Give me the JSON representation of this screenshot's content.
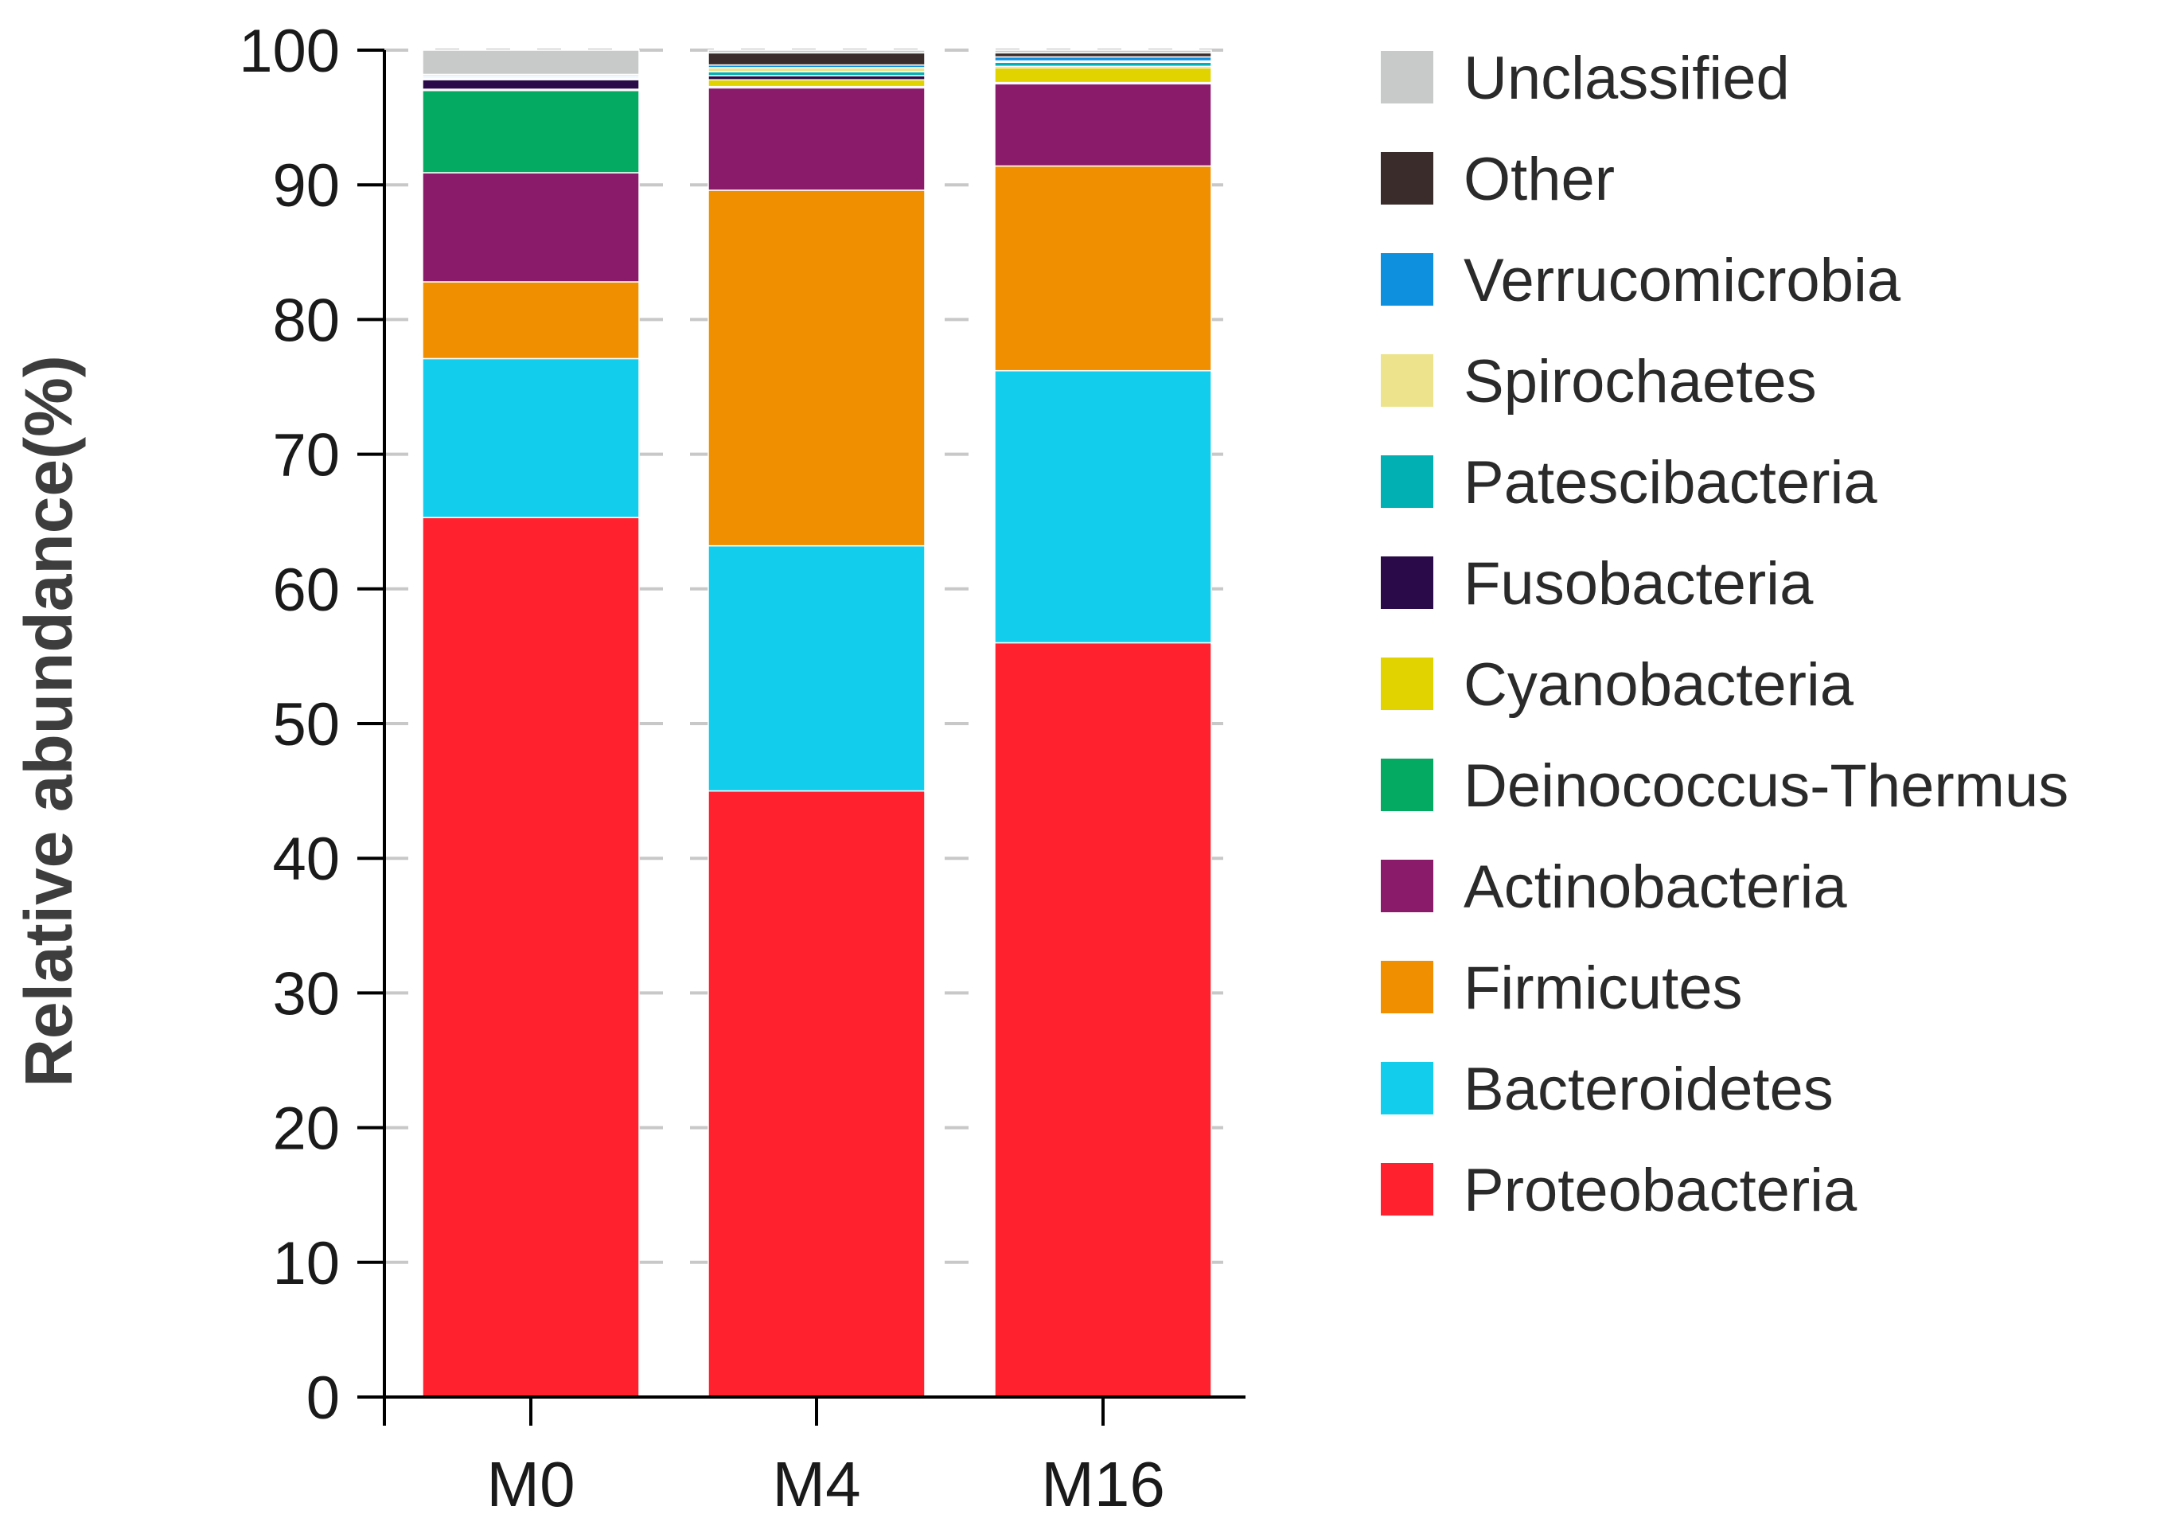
{
  "chart_data": {
    "type": "bar",
    "stacked": true,
    "title": "",
    "xlabel": "",
    "ylabel": "Relative abundance(%)",
    "ylim": [
      0,
      100
    ],
    "yticks": [
      0,
      10,
      20,
      30,
      40,
      50,
      60,
      70,
      80,
      90,
      100
    ],
    "grid": "dashed horizontal",
    "legend_position": "right",
    "categories": [
      "M0",
      "M4",
      "M16"
    ],
    "series": [
      {
        "name": "Proteobacteria",
        "color": "#FF222E",
        "values": [
          65.3,
          45.0,
          56.0
        ]
      },
      {
        "name": "Bacteroidetes",
        "color": "#12CEEC",
        "values": [
          11.8,
          18.2,
          20.2
        ]
      },
      {
        "name": "Firmicutes",
        "color": "#F09000",
        "values": [
          5.7,
          26.4,
          15.2
        ]
      },
      {
        "name": "Actinobacteria",
        "color": "#8A1A6A",
        "values": [
          8.1,
          7.6,
          6.1
        ]
      },
      {
        "name": "Deinococcus-Thermus",
        "color": "#04AA62",
        "values": [
          6.1,
          0.1,
          0.1
        ]
      },
      {
        "name": "Cyanobacteria",
        "color": "#E0D300",
        "values": [
          0.1,
          0.5,
          1.1
        ]
      },
      {
        "name": "Fusobacteria",
        "color": "#2A0A48",
        "values": [
          0.7,
          0.3,
          0.1
        ]
      },
      {
        "name": "Patescibacteria",
        "color": "#00B0B2",
        "values": [
          0.1,
          0.3,
          0.3
        ]
      },
      {
        "name": "Spirochaetes",
        "color": "#ECE38C",
        "values": [
          0.1,
          0.3,
          0.1
        ]
      },
      {
        "name": "Verrucomicrobia",
        "color": "#0E90DE",
        "values": [
          0.1,
          0.2,
          0.3
        ]
      },
      {
        "name": "Other",
        "color": "#3A2C2A",
        "values": [
          0.1,
          0.9,
          0.3
        ]
      },
      {
        "name": "Unclassified",
        "color": "#C8CACA",
        "values": [
          1.8,
          0.2,
          0.2
        ]
      }
    ]
  }
}
